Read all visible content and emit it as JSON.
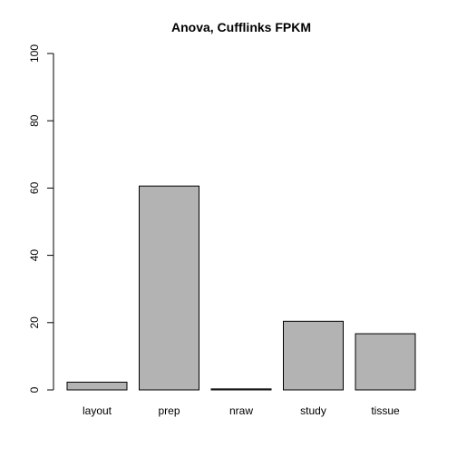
{
  "chart_data": {
    "type": "bar",
    "title": "Anova, Cufflinks FPKM",
    "xlabel": "",
    "ylabel": "",
    "categories": [
      "layout",
      "prep",
      "nraw",
      "study",
      "tissue"
    ],
    "values": [
      2.3,
      60.6,
      0.3,
      20.4,
      16.7
    ],
    "ylim": [
      0,
      100
    ],
    "yticks": [
      0,
      20,
      40,
      60,
      80,
      100
    ],
    "bar_color": "#b3b3b3",
    "grid": false,
    "legend": "none"
  }
}
